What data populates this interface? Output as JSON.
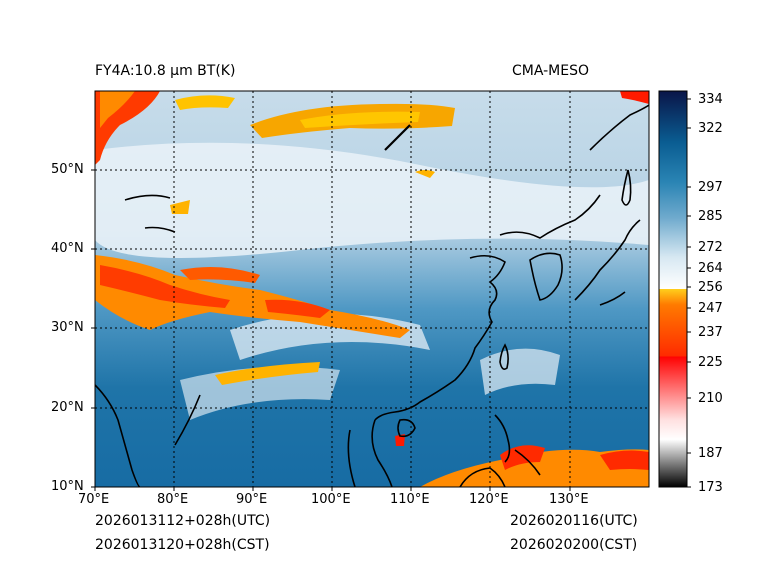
{
  "header": {
    "left_title": "FY4A:10.8 µm BT(K)",
    "right_title": "CMA-MESO"
  },
  "footer": {
    "init_utc": "2026013112+028h(UTC)",
    "init_cst": "2026013120+028h(CST)",
    "valid_utc": "2026020116(UTC)",
    "valid_cst": "2026020200(CST)"
  },
  "axes": {
    "lon_labels": [
      "70°E",
      "80°E",
      "90°E",
      "100°E",
      "110°E",
      "120°E",
      "130°E"
    ],
    "lat_labels": [
      "10°N",
      "20°N",
      "30°N",
      "40°N",
      "50°N"
    ]
  },
  "colorbar": {
    "tick_labels": [
      "334",
      "322",
      "297",
      "285",
      "272",
      "264",
      "256",
      "247",
      "237",
      "225",
      "210",
      "187",
      "173"
    ],
    "stops": [
      {
        "value": 173,
        "color": "#000000"
      },
      {
        "value": 187,
        "color": "#ffffff"
      },
      {
        "value": 210,
        "color": "#ff9999"
      },
      {
        "value": 225,
        "color": "#ff0000"
      },
      {
        "value": 237,
        "color": "#ff6600"
      },
      {
        "value": 247,
        "color": "#ffd21f"
      },
      {
        "value": 256,
        "color": "#ffffff"
      },
      {
        "value": 264,
        "color": "#d0e4ef"
      },
      {
        "value": 272,
        "color": "#8fbcd6"
      },
      {
        "value": 285,
        "color": "#2a7fae"
      },
      {
        "value": 297,
        "color": "#0a5d92"
      },
      {
        "value": 322,
        "color": "#083a7a"
      },
      {
        "value": 334,
        "color": "#0a1548"
      }
    ]
  },
  "colors": {
    "ocean": "#1f74a8",
    "cold_cloud": "#f2a500",
    "cirrus": "#e8f1f7",
    "coast": "#000000"
  }
}
